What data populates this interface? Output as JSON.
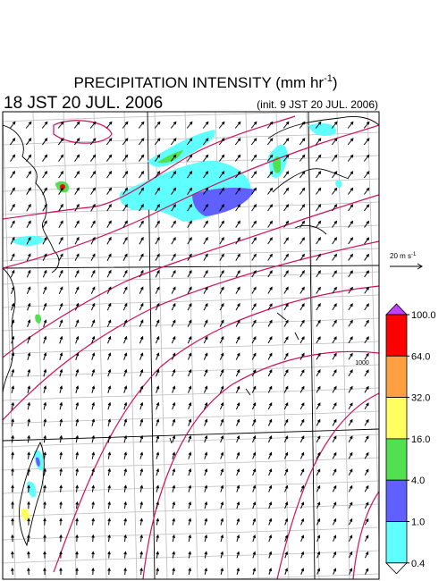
{
  "header": {
    "title": "PRECIPITATION INTENSITY (mm hr",
    "title_exp": "-1",
    "title_close": ")",
    "valid_time": "18 JST 20 JUL. 2006",
    "init_time": "(init. 9 JST 20 JUL. 2006)"
  },
  "reference_vector": {
    "label": "20 m s",
    "label_exp": "-1"
  },
  "isobar_labels": [
    "1000"
  ],
  "colorbar": {
    "levels": [
      {
        "value": 100,
        "label": "100.0"
      },
      {
        "value": 64,
        "label": "64.0"
      },
      {
        "value": 32,
        "label": "32.0"
      },
      {
        "value": 16,
        "label": "16.0"
      },
      {
        "value": 4,
        "label": "4.0"
      },
      {
        "value": 1,
        "label": "1.0"
      },
      {
        "value": 0.4,
        "label": "0.4"
      }
    ],
    "colors": [
      "#ff0000",
      "#ffa040",
      "#ffff60",
      "#50e050",
      "#6060ff",
      "#60ffff"
    ],
    "over_color": "#c040ff",
    "under_color": "#ffffff"
  }
}
